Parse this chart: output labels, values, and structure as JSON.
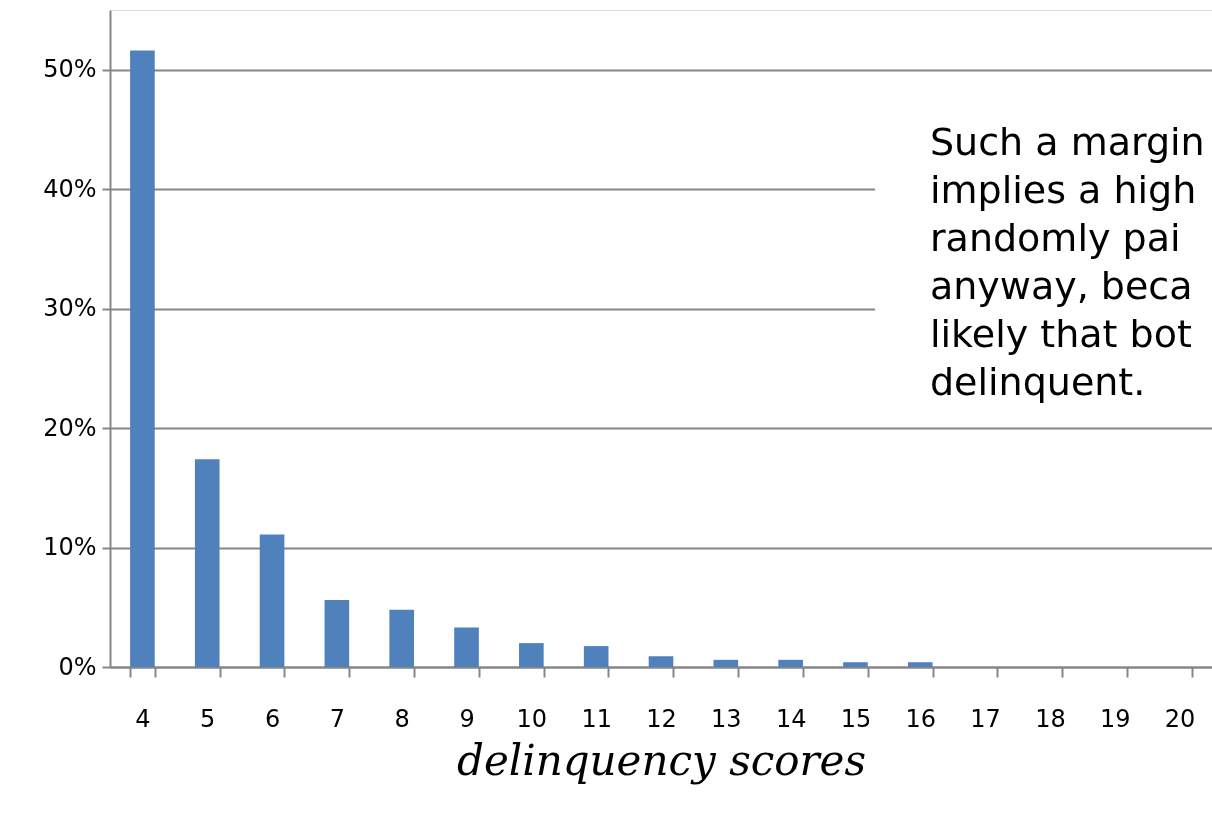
{
  "chart_data": {
    "type": "bar",
    "xlabel": "delinquency scores",
    "categories": [
      "4",
      "5",
      "6",
      "7",
      "8",
      "9",
      "10",
      "11",
      "12",
      "13",
      "14",
      "15",
      "16",
      "17",
      "18",
      "19",
      "20"
    ],
    "values": [
      51.6,
      17.4,
      11.1,
      5.6,
      4.8,
      3.3,
      2.0,
      1.75,
      0.9,
      0.6,
      0.6,
      0.4,
      0.4,
      0,
      0,
      0,
      0
    ],
    "color": "#4f81bd",
    "ylim": [
      0,
      55
    ],
    "yticks": [
      {
        "value": 0,
        "label": "0%"
      },
      {
        "value": 10,
        "label": "10%"
      },
      {
        "value": 20,
        "label": "20%"
      },
      {
        "value": 30,
        "label": "30%"
      },
      {
        "value": 40,
        "label": "40%"
      },
      {
        "value": 50,
        "label": "50%"
      }
    ],
    "grid": "y",
    "annotations": [
      "Such a margin",
      "implies a high",
      "randomly pai",
      "anyway, beca",
      "likely that bot",
      "delinquent."
    ]
  }
}
